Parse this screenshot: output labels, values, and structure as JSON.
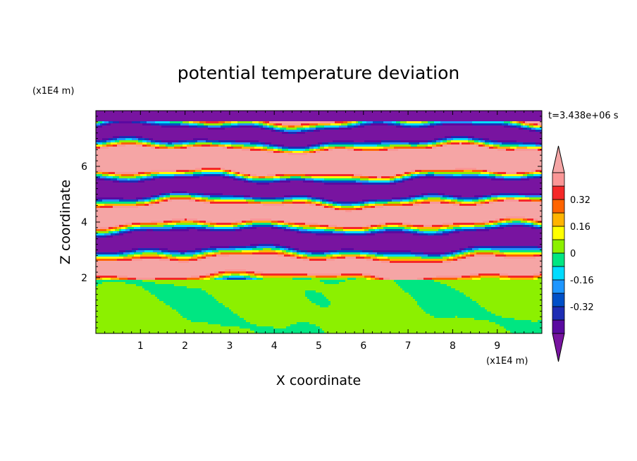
{
  "chart_data": {
    "type": "heatmap",
    "title": "potential temperature deviation",
    "xlabel": "X coordinate",
    "ylabel": "Z coordinate",
    "x_unit": "(x1E4 m)",
    "z_unit": "(x1E4 m)",
    "time_label": "t=3.438e+06 s",
    "xlim": [
      0,
      10
    ],
    "ylim": [
      0,
      8
    ],
    "x_ticks": [
      {
        "value": 1,
        "label": "1"
      },
      {
        "value": 2,
        "label": "2"
      },
      {
        "value": 3,
        "label": "3"
      },
      {
        "value": 4,
        "label": "4"
      },
      {
        "value": 5,
        "label": "5"
      },
      {
        "value": 6,
        "label": "6"
      },
      {
        "value": 7,
        "label": "7"
      },
      {
        "value": 8,
        "label": "8"
      },
      {
        "value": 9,
        "label": "9"
      }
    ],
    "y_ticks": [
      {
        "value": 2,
        "label": "2"
      },
      {
        "value": 4,
        "label": "4"
      },
      {
        "value": 6,
        "label": "6"
      }
    ],
    "colorbar": {
      "levels": [
        -0.48,
        -0.4,
        -0.32,
        -0.24,
        -0.16,
        -0.08,
        0,
        0.08,
        0.16,
        0.24,
        0.32,
        0.4,
        0.48
      ],
      "colors": [
        "#5a0aa0",
        "#1e2db4",
        "#0050c8",
        "#1e96ff",
        "#00dcff",
        "#00e682",
        "#8cf000",
        "#ffff00",
        "#ffb400",
        "#ff6400",
        "#f52828",
        "#fa9696"
      ],
      "under_color": "#7814a0",
      "over_color": "#f5a5a5",
      "labels": [
        {
          "value": 0.32,
          "label": "0.32"
        },
        {
          "value": 0.16,
          "label": "0.16"
        },
        {
          "value": 0,
          "label": "0"
        },
        {
          "value": -0.16,
          "label": "-0.16"
        },
        {
          "value": -0.32,
          "label": "-0.32"
        }
      ]
    }
  }
}
